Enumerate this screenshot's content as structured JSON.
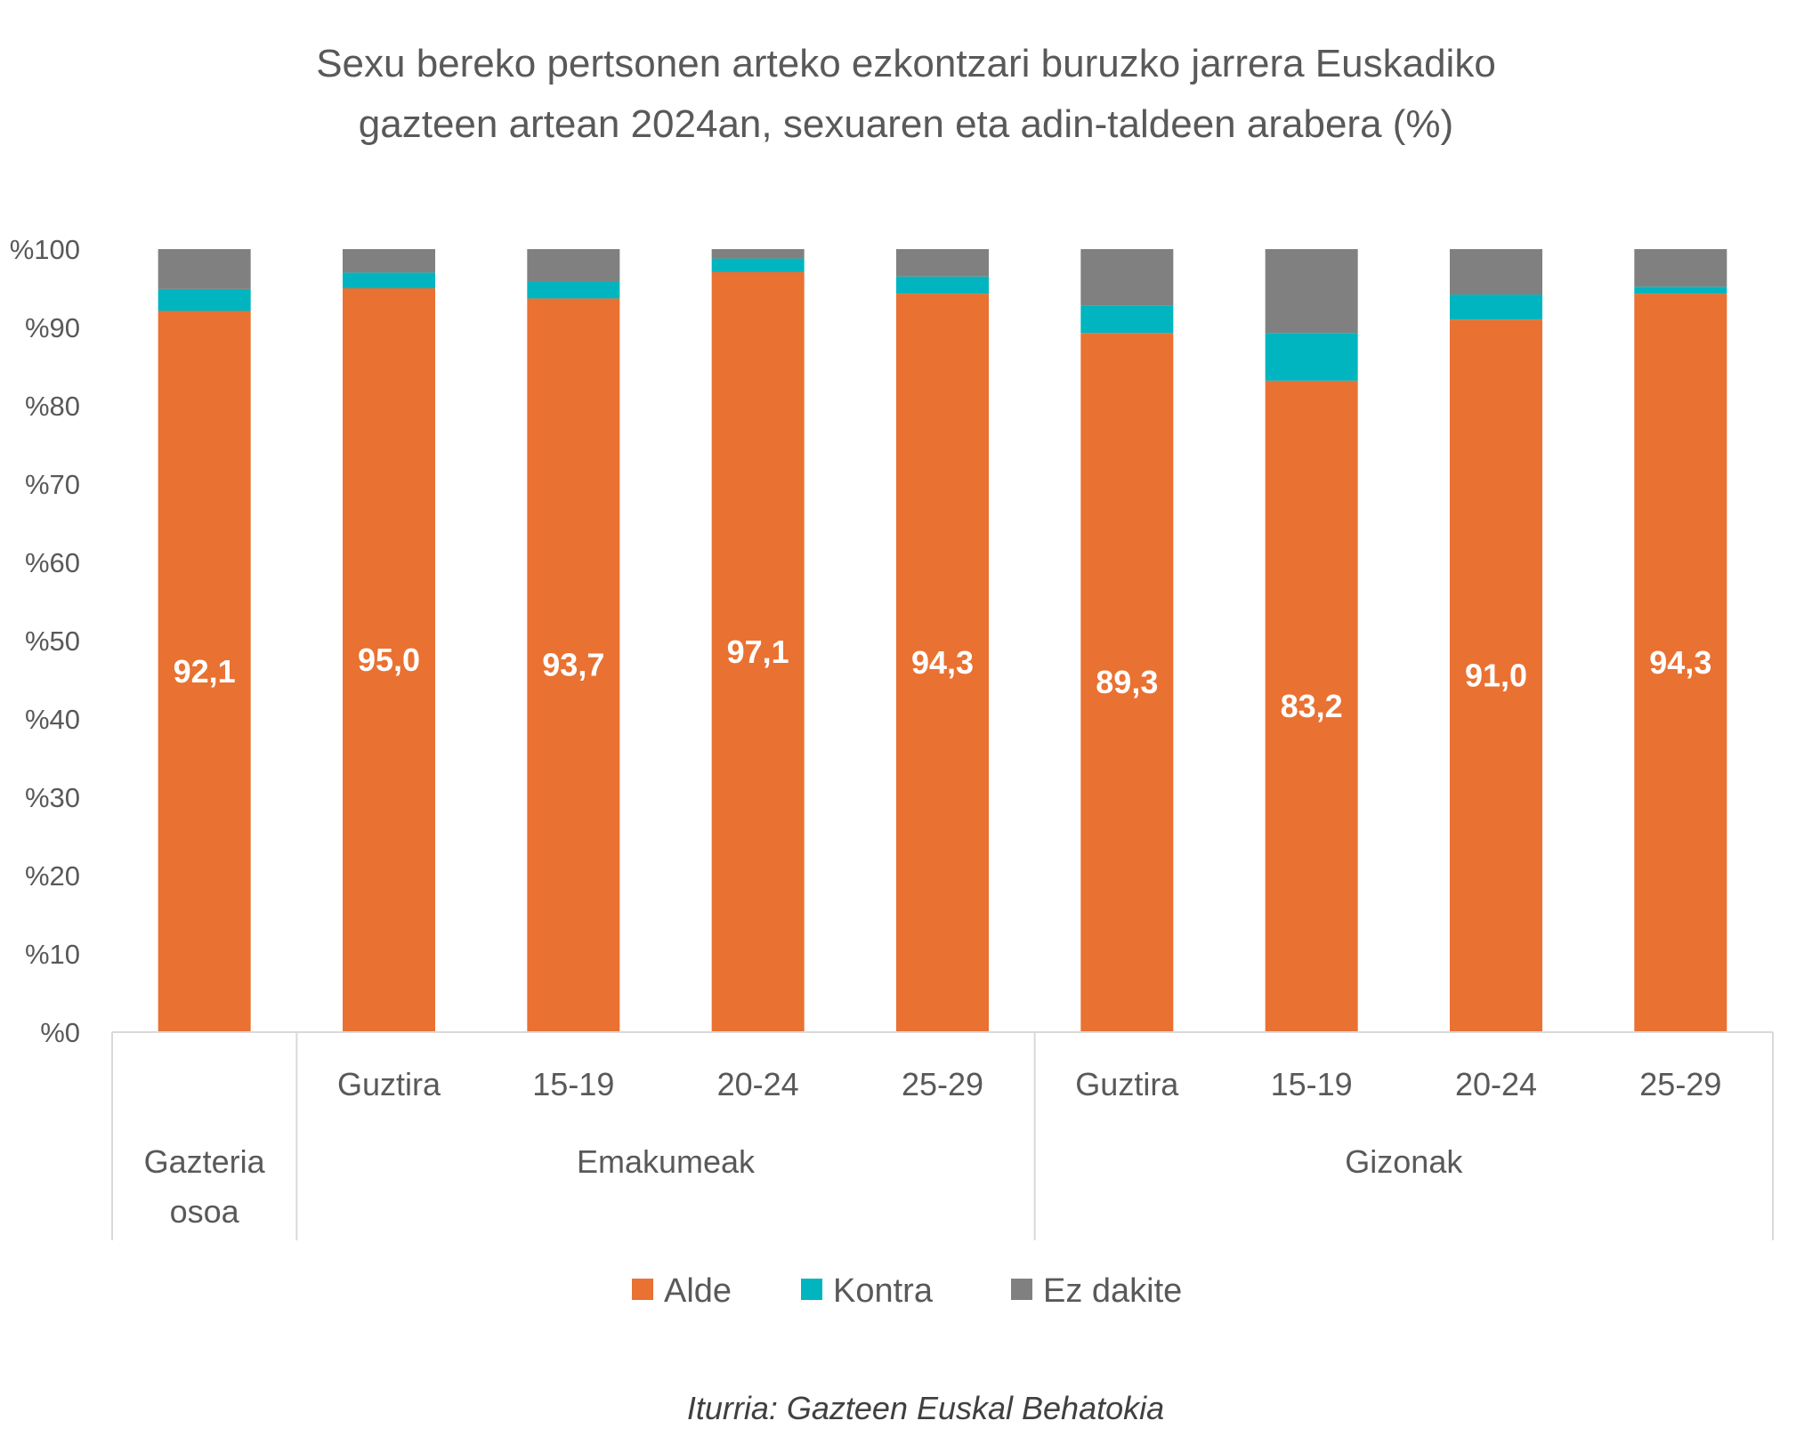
{
  "chart_data": {
    "type": "bar",
    "stacked": true,
    "title_lines": [
      "Sexu bereko pertsonen arteko ezkontzari buruzko jarrera Euskadiko",
      "gazteen artean 2024an, sexuaren eta adin-taldeen arabera (%)"
    ],
    "categories": [
      "",
      "Guztira",
      "15-19",
      "20-24",
      "25-29",
      "Guztira",
      "15-19",
      "20-24",
      "25-29"
    ],
    "groups": [
      {
        "label_lines": [
          "Gazteria",
          "osoa"
        ],
        "count": 1
      },
      {
        "label_lines": [
          "Emakumeak"
        ],
        "count": 4
      },
      {
        "label_lines": [
          "Gizonak"
        ],
        "count": 4
      }
    ],
    "series": [
      {
        "name": "Alde",
        "color": "#E97132",
        "values": [
          92.1,
          95.0,
          93.7,
          97.1,
          94.3,
          89.3,
          83.2,
          91.0,
          94.3
        ],
        "data_labels": [
          "92,1",
          "95,0",
          "93,7",
          "97,1",
          "94,3",
          "89,3",
          "83,2",
          "91,0",
          "94,3"
        ]
      },
      {
        "name": "Kontra",
        "color": "#00B5BF",
        "values": [
          2.8,
          2.0,
          2.1,
          1.7,
          2.2,
          3.5,
          6.1,
          3.2,
          0.9
        ]
      },
      {
        "name": "Ez dakite",
        "color": "#808080",
        "values": [
          5.1,
          3.0,
          4.2,
          1.2,
          3.5,
          7.2,
          10.7,
          5.8,
          4.8
        ]
      }
    ],
    "ylim": [
      0,
      100
    ],
    "yticks": [
      "%0",
      "%10",
      "%20",
      "%30",
      "%40",
      "%50",
      "%60",
      "%70",
      "%80",
      "%90",
      "%100"
    ],
    "grid": false,
    "legend": "bottom",
    "source": "Iturria: Gazteen Euskal Behatokia"
  }
}
